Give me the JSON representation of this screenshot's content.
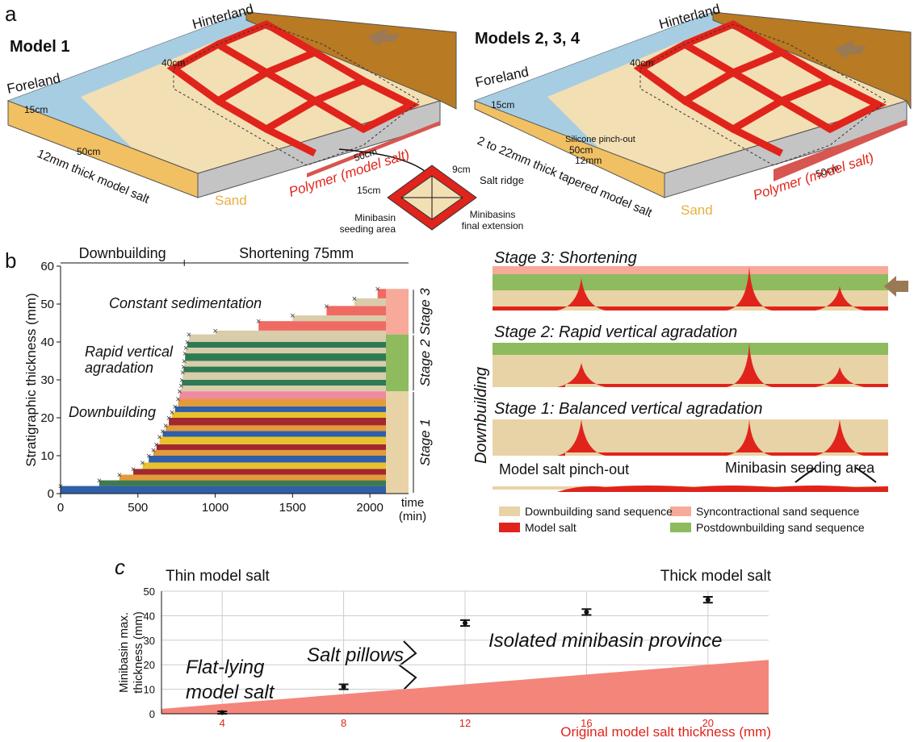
{
  "panel_a": {
    "label": "a",
    "model_1": {
      "title": "Model 1",
      "hinterland": "Hinterland",
      "foreland": "Foreland",
      "width": "40cm",
      "foreland_width": "15cm",
      "length": "50cm",
      "salt": "12mm thick model salt",
      "sand": "Sand",
      "polymer": "Polymer (model salt)",
      "polymer_length": "50cm"
    },
    "inset": {
      "top": "9cm",
      "ridge": "Salt ridge",
      "side": "15cm",
      "seeding": [
        "Minibasin",
        "seeding area"
      ],
      "extension": [
        "Minibasins",
        "final extension"
      ]
    },
    "models_2_4": {
      "title": "Models 2, 3, 4",
      "hinterland": "Hinterland",
      "foreland": "Foreland",
      "width": "40cm",
      "foreland_width": "15cm",
      "pinch_out": "Silicone pinch-out",
      "length": "50cm",
      "thickness": "12mm",
      "salt": "2 to 22mm thick tapered model salt",
      "polymer_length": "50cm",
      "polymer": "Polymer (model salt)",
      "sand": "Sand"
    }
  },
  "panel_b": {
    "label": "b",
    "stage_3": "Stage 3: Shortening",
    "stage_2": "Stage 2: Rapid vertical agradation",
    "stage_1": "Stage 1: Balanced vertical agradation",
    "side_label": "Downbuilding",
    "pinch_out": "Model salt pinch-out",
    "seeding": "Minibasin seeding area",
    "legend": [
      "Downbuilding sand sequence",
      "Model salt",
      "Syncontractional sand sequence",
      "Postdownbuilding sand sequence"
    ]
  },
  "chart_data": [
    {
      "type": "staircase",
      "phases": [
        "Downbuilding",
        "Shortening 75mm"
      ],
      "phase_split": 800,
      "annotations": [
        "Constant sedimentation",
        "Rapid vertical",
        "agradation",
        "Downbuilding"
      ],
      "y_label": "Stratigraphic thickness (mm)",
      "x_label": [
        "time",
        "(min)"
      ],
      "x": [
        0,
        250,
        380,
        470,
        530,
        570,
        600,
        620,
        640,
        660,
        680,
        700,
        720,
        740,
        760,
        770,
        780,
        785,
        790,
        795,
        800,
        805,
        810,
        820,
        830,
        1000,
        1280,
        1500,
        1720,
        1900,
        2050
      ],
      "values": [
        2,
        3.5,
        5,
        6.5,
        8.2,
        10,
        11.5,
        13,
        15,
        16.5,
        18,
        20,
        21.5,
        23,
        25,
        27,
        28.5,
        30,
        32,
        33.5,
        35,
        37,
        38.5,
        40,
        42,
        43,
        45.5,
        47,
        49.5,
        51.5,
        54
      ],
      "colors": [
        "#2f5fa8",
        "#3f7a4f",
        "#e39a3a",
        "#a0282e",
        "#e8c12e",
        "#2f5fa8",
        "#e39a3a",
        "#a0282e",
        "#e8c12e",
        "#2f5fa8",
        "#e39a3a",
        "#a0282e",
        "#e8c12e",
        "#2f5fa8",
        "#e39a3a",
        "#f08aa0",
        "#d9ccaa",
        "#2e7a55",
        "#d9ccaa",
        "#2e7a55",
        "#d9ccaa",
        "#2e7a55",
        "#d9ccaa",
        "#2e7a55",
        "#d9ccaa",
        "#d9ccaa",
        "#ef6a62",
        "#d9ccaa",
        "#ef6a62",
        "#d9ccaa",
        "#ef6a62"
      ],
      "stages": [
        {
          "name": "Stage 1",
          "from": 0,
          "to": 27,
          "color": "#e8d3a6"
        },
        {
          "name": "Stage 2",
          "from": 27,
          "to": 42,
          "color": "#8dbb5e"
        },
        {
          "name": "Stage 3",
          "from": 42,
          "to": 54,
          "color": "#f7a99a"
        }
      ],
      "xlim": [
        0,
        2250
      ],
      "ylim": [
        0,
        60
      ],
      "xticks": [
        0,
        500,
        1000,
        1500,
        2000
      ],
      "yticks": [
        0,
        10,
        20,
        30,
        40,
        50,
        60
      ]
    },
    {
      "type": "scatter",
      "panel_label": "c",
      "labels": {
        "thin": "Thin model salt",
        "thick": "Thick model salt"
      },
      "y_label": [
        "Minibasin max.",
        "thickness (mm)"
      ],
      "x_label": "Original model salt thickness (mm)",
      "annotations": [
        "Flat-lying",
        "model salt",
        "Salt pillows",
        "Isolated minibasin province"
      ],
      "x": [
        4,
        8,
        12,
        16,
        20
      ],
      "values": [
        0.5,
        11,
        37,
        41.5,
        46.5
      ],
      "errors": [
        0.5,
        1,
        1.2,
        1.2,
        1.2
      ],
      "area": {
        "x": [
          2,
          22
        ],
        "values": [
          2,
          22
        ],
        "color": "#f4857a"
      },
      "xlim": [
        2,
        22
      ],
      "ylim": [
        0,
        50
      ],
      "xticks": [
        4,
        8,
        12,
        16,
        20
      ],
      "yticks": [
        0,
        10,
        20,
        30,
        40,
        50
      ],
      "grid": true,
      "tick_color": "#e0241b"
    }
  ]
}
